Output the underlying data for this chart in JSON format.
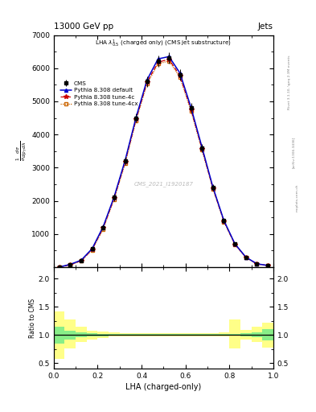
{
  "title": "13000 GeV pp",
  "title_right": "Jets",
  "plot_label": "LHA $\\lambda^{1}_{0.5}$ (charged only) (CMS jet substructure)",
  "xlabel": "LHA (charged-only)",
  "ylabel_ratio": "Ratio to CMS",
  "watermark": "CMS_2021_I1920187",
  "right_label1": "mcplots.cern.ch",
  "right_label2": "[arXiv:1306.3436]",
  "right_label3": "Rivet 3.1.10, \\geq 2.3M events",
  "x_edges": [
    0.0,
    0.05,
    0.1,
    0.15,
    0.2,
    0.25,
    0.3,
    0.35,
    0.4,
    0.45,
    0.5,
    0.55,
    0.6,
    0.65,
    0.7,
    0.75,
    0.8,
    0.85,
    0.9,
    0.95,
    1.0
  ],
  "cms_y": [
    2.0,
    80.0,
    200.0,
    550.0,
    1200.0,
    2100.0,
    3200.0,
    4500.0,
    5600.0,
    6200.0,
    6300.0,
    5800.0,
    4800.0,
    3600.0,
    2400.0,
    1400.0,
    700.0,
    300.0,
    100.0,
    50.0
  ],
  "cms_yerr": [
    1.0,
    30.0,
    60.0,
    70.0,
    80.0,
    100.0,
    120.0,
    140.0,
    160.0,
    170.0,
    170.0,
    160.0,
    140.0,
    120.0,
    100.0,
    80.0,
    60.0,
    40.0,
    20.0,
    15.0
  ],
  "py_default_y": [
    2.5,
    85.0,
    210.0,
    560.0,
    1220.0,
    2120.0,
    3220.0,
    4520.0,
    5650.0,
    6280.0,
    6350.0,
    5850.0,
    4820.0,
    3620.0,
    2410.0,
    1405.0,
    705.0,
    302.0,
    102.0,
    52.0
  ],
  "py_tune4c_y": [
    2.0,
    75.0,
    195.0,
    540.0,
    1180.0,
    2080.0,
    3170.0,
    4470.0,
    5580.0,
    6180.0,
    6270.0,
    5770.0,
    4760.0,
    3575.0,
    2380.0,
    1385.0,
    690.0,
    295.0,
    98.0,
    48.0
  ],
  "py_tune4cx_y": [
    1.5,
    70.0,
    185.0,
    520.0,
    1150.0,
    2050.0,
    3120.0,
    4420.0,
    5530.0,
    6130.0,
    6220.0,
    5720.0,
    4710.0,
    3535.0,
    2355.0,
    1370.0,
    680.0,
    290.0,
    95.0,
    46.0
  ],
  "ratio_green_lo": [
    0.85,
    0.92,
    0.96,
    0.97,
    0.98,
    0.985,
    0.99,
    0.99,
    0.99,
    0.99,
    0.99,
    0.99,
    0.99,
    0.99,
    0.99,
    0.99,
    0.985,
    0.97,
    0.96,
    0.9
  ],
  "ratio_green_hi": [
    1.15,
    1.08,
    1.04,
    1.03,
    1.02,
    1.015,
    1.01,
    1.01,
    1.01,
    1.01,
    1.01,
    1.01,
    1.01,
    1.01,
    1.01,
    1.01,
    1.015,
    1.03,
    1.04,
    1.1
  ],
  "ratio_yellow_lo": [
    0.58,
    0.76,
    0.87,
    0.92,
    0.95,
    0.97,
    0.975,
    0.975,
    0.975,
    0.975,
    0.975,
    0.975,
    0.975,
    0.975,
    0.975,
    0.97,
    0.76,
    0.92,
    0.87,
    0.78
  ],
  "ratio_yellow_hi": [
    1.42,
    1.28,
    1.15,
    1.08,
    1.06,
    1.04,
    1.03,
    1.03,
    1.025,
    1.025,
    1.025,
    1.025,
    1.025,
    1.025,
    1.03,
    1.04,
    1.28,
    1.09,
    1.14,
    1.22
  ],
  "color_cms": "#000000",
  "color_default": "#0000cc",
  "color_tune4c": "#cc0000",
  "color_tune4cx": "#cc6600",
  "ylim_main": [
    0,
    7000
  ],
  "ylim_ratio": [
    0.4,
    2.2
  ],
  "yticks_main": [
    1000,
    2000,
    3000,
    4000,
    5000,
    6000,
    7000
  ],
  "yticks_ratio": [
    0.5,
    1.0,
    1.5,
    2.0
  ],
  "xticks": [
    0.0,
    0.2,
    0.4,
    0.6,
    0.8,
    1.0
  ]
}
